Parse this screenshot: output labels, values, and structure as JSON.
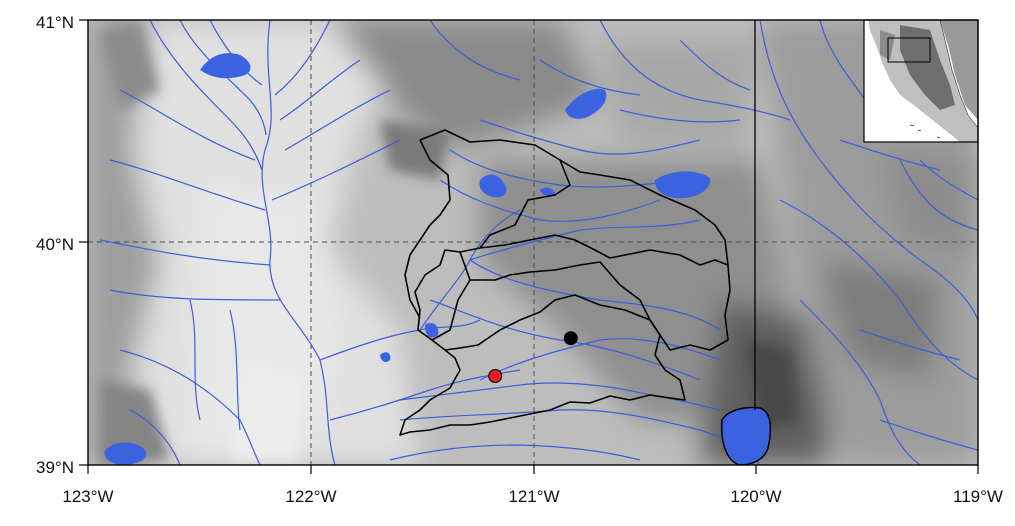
{
  "map": {
    "lat_labels": [
      "41°N",
      "40°N",
      "39°N"
    ],
    "lon_labels": [
      "123°W",
      "122°W",
      "121°W",
      "120°W",
      "119°W"
    ],
    "colors": {
      "rivers": "#3a5fd6",
      "lakes": "#3b63e0",
      "basin_outline": "#000000",
      "terrain_low": "#dcdcdc",
      "terrain_high": "#5a5a5a"
    },
    "markers": [
      {
        "name": "black-station-marker",
        "color": "#000000",
        "lat": 39.57,
        "lon": -120.83
      },
      {
        "name": "red-station-marker",
        "color": "#e02020",
        "lat": 39.4,
        "lon": -121.17
      }
    ],
    "icons": [
      "inset-locator-map",
      "state-border-line"
    ]
  }
}
